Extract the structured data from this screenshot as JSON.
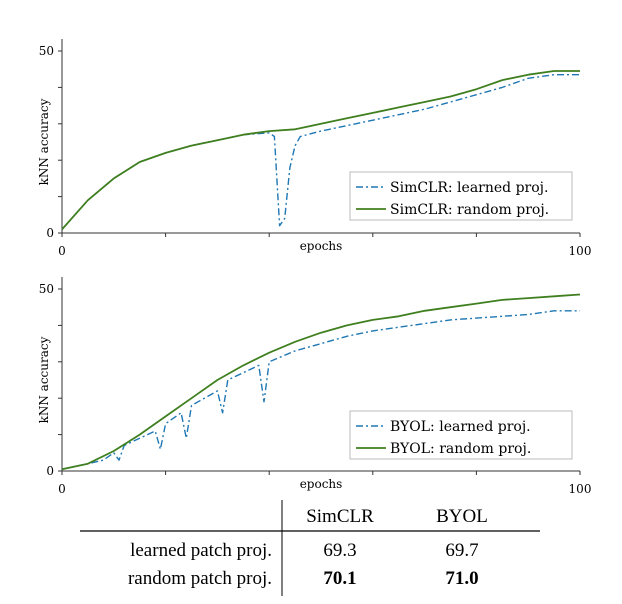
{
  "colors": {
    "learned": "#1f77b4",
    "random": "#3f7f1f"
  },
  "chart_data": [
    {
      "type": "line",
      "xlabel": "epochs",
      "ylabel": "kNN accuracy",
      "xlim": [
        0,
        100
      ],
      "ylim": [
        0,
        50
      ],
      "xticks": [
        "0",
        "100"
      ],
      "yticks": [
        "0",
        "50"
      ],
      "legend_position": "bottom-right",
      "series": [
        {
          "name": "SimCLR: learned proj.",
          "style": "dashdot",
          "points": [
            [
              0,
              1
            ],
            [
              5,
              9
            ],
            [
              10,
              15
            ],
            [
              15,
              19.5
            ],
            [
              20,
              22
            ],
            [
              25,
              24
            ],
            [
              30,
              25.5
            ],
            [
              35,
              27
            ],
            [
              40,
              27.5
            ],
            [
              41,
              26.5
            ],
            [
              42,
              2
            ],
            [
              43,
              4
            ],
            [
              44,
              18
            ],
            [
              45,
              24
            ],
            [
              46,
              26.5
            ],
            [
              50,
              28
            ],
            [
              55,
              29.5
            ],
            [
              60,
              31
            ],
            [
              65,
              32.5
            ],
            [
              70,
              34
            ],
            [
              75,
              36
            ],
            [
              80,
              38
            ],
            [
              85,
              40
            ],
            [
              90,
              42.5
            ],
            [
              95,
              43.5
            ],
            [
              100,
              43.5
            ]
          ]
        },
        {
          "name": "SimCLR: random proj.",
          "style": "solid",
          "points": [
            [
              0,
              1
            ],
            [
              5,
              9
            ],
            [
              10,
              15
            ],
            [
              15,
              19.5
            ],
            [
              20,
              22
            ],
            [
              25,
              24
            ],
            [
              30,
              25.5
            ],
            [
              35,
              27
            ],
            [
              40,
              28
            ],
            [
              45,
              28.5
            ],
            [
              50,
              30
            ],
            [
              55,
              31.5
            ],
            [
              60,
              33
            ],
            [
              65,
              34.5
            ],
            [
              70,
              36
            ],
            [
              75,
              37.5
            ],
            [
              80,
              39.5
            ],
            [
              85,
              42
            ],
            [
              90,
              43.5
            ],
            [
              95,
              44.5
            ],
            [
              100,
              44.5
            ]
          ]
        }
      ]
    },
    {
      "type": "line",
      "xlabel": "epochs",
      "ylabel": "kNN accuracy",
      "xlim": [
        0,
        100
      ],
      "ylim": [
        0,
        50
      ],
      "xticks": [
        "0",
        "100"
      ],
      "yticks": [
        "0",
        "50"
      ],
      "legend_position": "bottom-right",
      "series": [
        {
          "name": "BYOL: learned proj.",
          "style": "dashdot",
          "points": [
            [
              0,
              0.5
            ],
            [
              5,
              2
            ],
            [
              8,
              3
            ],
            [
              10,
              5
            ],
            [
              11,
              3
            ],
            [
              12,
              7
            ],
            [
              15,
              9
            ],
            [
              18,
              11
            ],
            [
              19,
              6
            ],
            [
              20,
              13
            ],
            [
              23,
              16
            ],
            [
              24,
              9
            ],
            [
              25,
              18
            ],
            [
              30,
              22
            ],
            [
              31,
              16
            ],
            [
              32,
              25
            ],
            [
              38,
              29
            ],
            [
              39,
              19
            ],
            [
              40,
              30
            ],
            [
              45,
              33
            ],
            [
              50,
              35
            ],
            [
              55,
              37
            ],
            [
              60,
              38.5
            ],
            [
              65,
              39.5
            ],
            [
              70,
              40.5
            ],
            [
              75,
              41.5
            ],
            [
              80,
              42
            ],
            [
              85,
              42.5
            ],
            [
              90,
              43
            ],
            [
              95,
              44
            ],
            [
              100,
              44
            ]
          ]
        },
        {
          "name": "BYOL: random proj.",
          "style": "solid",
          "points": [
            [
              0,
              0.5
            ],
            [
              5,
              2
            ],
            [
              10,
              5.5
            ],
            [
              15,
              10
            ],
            [
              20,
              15
            ],
            [
              25,
              20
            ],
            [
              30,
              25
            ],
            [
              35,
              29
            ],
            [
              40,
              32.5
            ],
            [
              45,
              35.5
            ],
            [
              50,
              38
            ],
            [
              55,
              40
            ],
            [
              60,
              41.5
            ],
            [
              65,
              42.5
            ],
            [
              70,
              44
            ],
            [
              75,
              45
            ],
            [
              80,
              46
            ],
            [
              85,
              47
            ],
            [
              90,
              47.5
            ],
            [
              95,
              48
            ],
            [
              100,
              48.5
            ]
          ]
        }
      ]
    }
  ],
  "table": {
    "header": [
      "SimCLR",
      "BYOL"
    ],
    "rows": [
      {
        "label": "learned patch proj.",
        "values": [
          "69.3",
          "69.7"
        ],
        "bold": [
          false,
          false
        ]
      },
      {
        "label": "random patch proj.",
        "values": [
          "70.1",
          "71.0"
        ],
        "bold": [
          true,
          true
        ]
      }
    ]
  }
}
